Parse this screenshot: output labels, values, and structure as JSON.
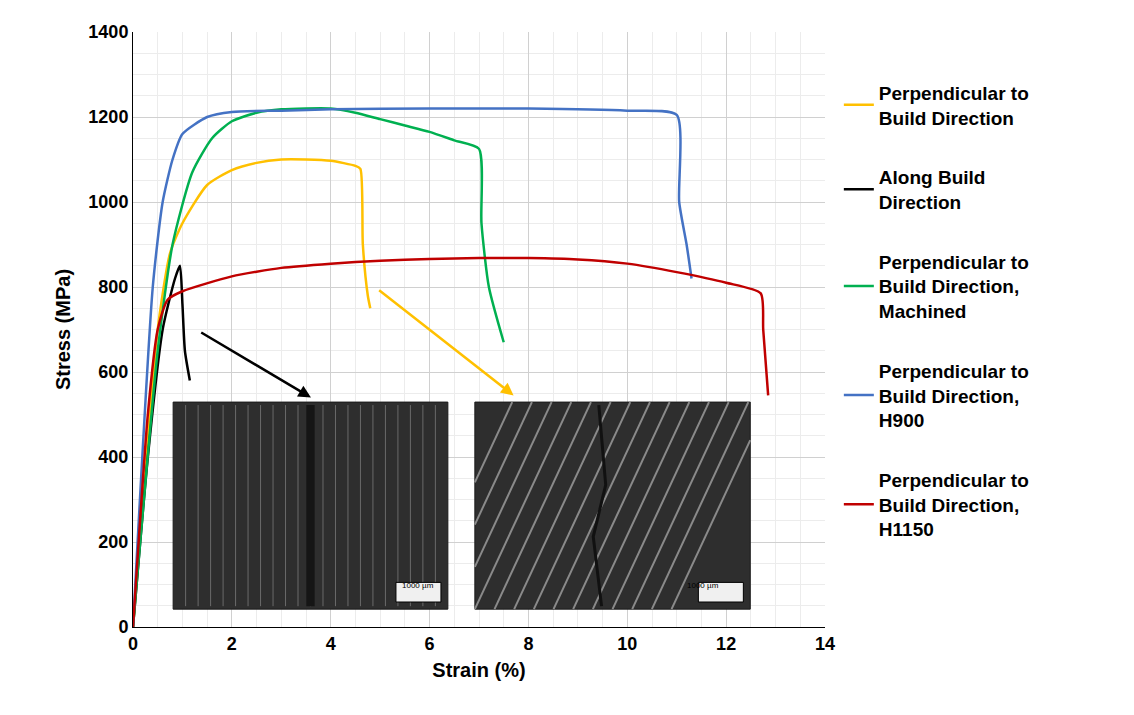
{
  "chart_data": {
    "type": "line",
    "x_label": "Strain (%)",
    "y_label": "Stress (MPa)",
    "xlim": [
      0,
      14
    ],
    "xticks": [
      0,
      2,
      4,
      6,
      8,
      10,
      12,
      14
    ],
    "ylim": [
      0,
      1400
    ],
    "yticks": [
      0,
      200,
      400,
      600,
      800,
      1000,
      1200,
      1400
    ],
    "grid": true,
    "legend": "right",
    "annotations": [
      "1000 µm",
      "1000 µm"
    ],
    "series": [
      {
        "name": "Perpendicular to Build Direction",
        "color": "#ffc000",
        "x": [
          0,
          0.5,
          0.75,
          1,
          1.5,
          2,
          2.5,
          3,
          3.5,
          4,
          4.5,
          4.6,
          4.65,
          4.75,
          4.8
        ],
        "values": [
          0,
          700,
          880,
          950,
          1040,
          1075,
          1092,
          1100,
          1100,
          1097,
          1085,
          1078,
          900,
          780,
          750
        ]
      },
      {
        "name": "Along Build Direction",
        "color": "#000000",
        "x": [
          0,
          0.3,
          0.6,
          0.85,
          0.95,
          1.0,
          1.05,
          1.15
        ],
        "values": [
          0,
          400,
          700,
          820,
          850,
          760,
          650,
          580
        ]
      },
      {
        "name": "Perpendicular to Build Direction, Machined",
        "color": "#00b050",
        "x": [
          0,
          0.5,
          0.8,
          1.2,
          1.6,
          2,
          2.5,
          3,
          4,
          4.5,
          5,
          5.5,
          6,
          6.5,
          7,
          7.05,
          7.2,
          7.5
        ],
        "values": [
          0,
          650,
          900,
          1070,
          1150,
          1190,
          1210,
          1218,
          1220,
          1210,
          1195,
          1180,
          1165,
          1145,
          1125,
          950,
          800,
          670
        ]
      },
      {
        "name": "Perpendicular to Build Direction, H900",
        "color": "#4472c4",
        "x": [
          0,
          0.4,
          0.6,
          0.8,
          1,
          1.5,
          2,
          3,
          4,
          6,
          8,
          10,
          11,
          11.05,
          11.2,
          11.3
        ],
        "values": [
          0,
          800,
          1000,
          1100,
          1160,
          1200,
          1212,
          1215,
          1218,
          1220,
          1220,
          1215,
          1205,
          1000,
          900,
          820
        ]
      },
      {
        "name": "Perpendicular to Build Direction, H1150",
        "color": "#c00000",
        "x": [
          0,
          0.3,
          0.5,
          0.7,
          1,
          2,
          3,
          4,
          5,
          6,
          7,
          8,
          9,
          10,
          11,
          12,
          12.7,
          12.75,
          12.85
        ],
        "values": [
          0,
          500,
          700,
          770,
          790,
          825,
          845,
          855,
          862,
          866,
          868,
          868,
          865,
          855,
          835,
          810,
          785,
          700,
          545
        ]
      }
    ]
  }
}
